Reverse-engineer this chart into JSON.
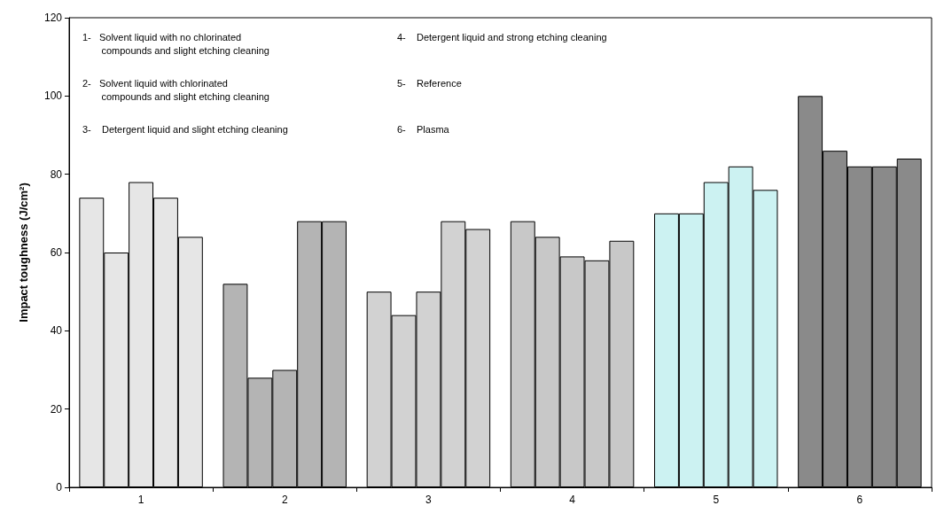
{
  "chart_data": {
    "type": "bar",
    "ylabel": "Impact toughness (J/cm²)",
    "categories": [
      "1",
      "2",
      "3",
      "4",
      "5",
      "6"
    ],
    "series": [
      {
        "values": [
          74,
          52,
          50,
          68,
          70,
          100
        ],
        "colors": [
          "#e6e6e6",
          "#b4b4b4",
          "#d2d2d2",
          "#c8c8c8",
          "#ccf2f2",
          "#8a8a8a"
        ]
      },
      {
        "values": [
          60,
          28,
          44,
          64,
          70,
          86
        ],
        "colors": [
          "#e6e6e6",
          "#b4b4b4",
          "#d2d2d2",
          "#c8c8c8",
          "#ccf2f2",
          "#8a8a8a"
        ]
      },
      {
        "values": [
          78,
          30,
          50,
          59,
          78,
          82
        ],
        "colors": [
          "#e6e6e6",
          "#b4b4b4",
          "#d2d2d2",
          "#c8c8c8",
          "#ccf2f2",
          "#8a8a8a"
        ]
      },
      {
        "values": [
          74,
          68,
          68,
          58,
          82,
          82
        ],
        "colors": [
          "#e6e6e6",
          "#b4b4b4",
          "#d2d2d2",
          "#c8c8c8",
          "#ccf2f2",
          "#8a8a8a"
        ]
      },
      {
        "values": [
          64,
          68,
          66,
          63,
          76,
          84
        ],
        "colors": [
          "#e6e6e6",
          "#b4b4b4",
          "#d2d2d2",
          "#c8c8c8",
          "#ccf2f2",
          "#8a8a8a"
        ]
      }
    ],
    "ylim": [
      0,
      120
    ],
    "yticks": [
      0,
      20,
      40,
      60,
      80,
      100,
      120
    ],
    "grid": false,
    "annotations": [
      "1-   Solvent liquid with no chlorinated\n       compounds and slight etching cleaning",
      "2-   Solvent liquid with chlorinated\n       compounds and slight etching cleaning",
      "3-    Detergent liquid and slight etching cleaning",
      "4-    Detergent liquid and strong etching cleaning",
      "5-    Reference",
      "6-    Plasma"
    ]
  }
}
